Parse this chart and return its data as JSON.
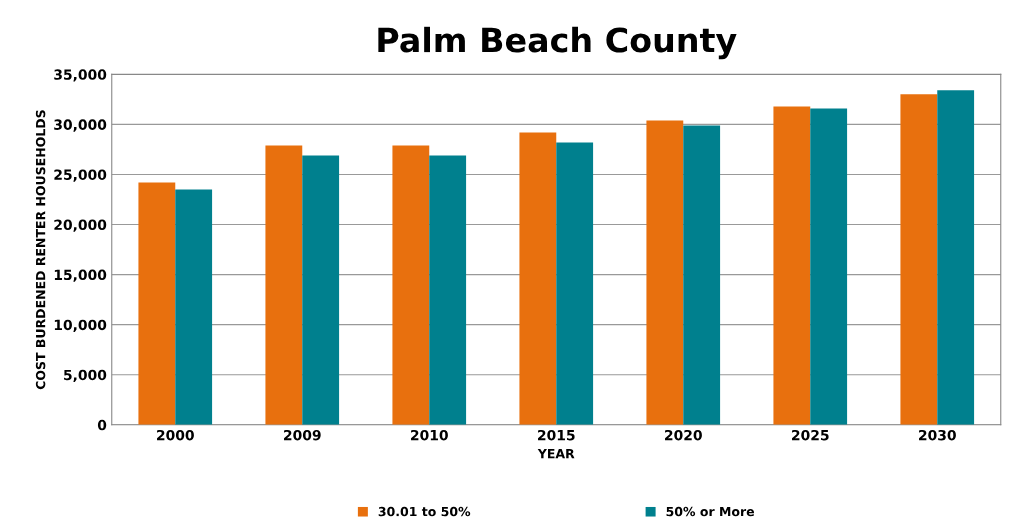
{
  "chart_data": {
    "type": "bar",
    "title": "Palm Beach County",
    "xlabel": "YEAR",
    "ylabel": "COST BURDENED RENTER HOUSEHOLDS",
    "categories": [
      "2000",
      "2009",
      "2010",
      "2015",
      "2020",
      "2025",
      "2030"
    ],
    "series": [
      {
        "name": "30.01 to 50%",
        "color": "#e8700e",
        "values": [
          24200,
          27900,
          27900,
          29200,
          30400,
          31800,
          33000
        ]
      },
      {
        "name": "50% or More",
        "color": "#00808e",
        "values": [
          23500,
          26900,
          26900,
          28200,
          29900,
          31600,
          33400
        ]
      }
    ],
    "ylim": [
      0,
      35000
    ],
    "yticks": [
      {
        "value": 0,
        "label": "0"
      },
      {
        "value": 5000,
        "label": "5,000"
      },
      {
        "value": 10000,
        "label": "10,000"
      },
      {
        "value": 15000,
        "label": "15,000"
      },
      {
        "value": 20000,
        "label": "20,000"
      },
      {
        "value": 25000,
        "label": "25,000"
      },
      {
        "value": 30000,
        "label": "30,000"
      },
      {
        "value": 35000,
        "label": "35,000"
      }
    ],
    "grid": "y",
    "legend": "bottom"
  }
}
